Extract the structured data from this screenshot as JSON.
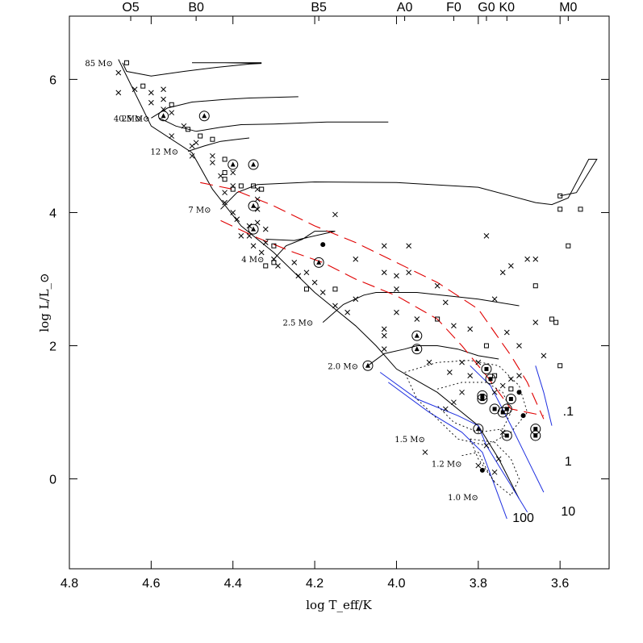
{
  "chart_data": {
    "type": "scatter",
    "title": "",
    "xlabel": "log T_eff/K",
    "ylabel": "log L/L_⊙",
    "x_reversed": true,
    "xlim": [
      4.8,
      3.48
    ],
    "ylim": [
      -1.35,
      6.95
    ],
    "x_ticks": [
      {
        "value": 4.8,
        "label": "4.8"
      },
      {
        "value": 4.6,
        "label": "4.6"
      },
      {
        "value": 4.4,
        "label": "4.4"
      },
      {
        "value": 4.2,
        "label": "4.2"
      },
      {
        "value": 4.0,
        "label": "4.0"
      },
      {
        "value": 3.8,
        "label": "3.8"
      },
      {
        "value": 3.6,
        "label": "3.6"
      }
    ],
    "y_ticks": [
      {
        "value": 0,
        "label": "0"
      },
      {
        "value": 2,
        "label": "2"
      },
      {
        "value": 4,
        "label": "4"
      },
      {
        "value": 6,
        "label": "6"
      }
    ],
    "spectral_types": [
      {
        "label": "O5",
        "logT": 4.65
      },
      {
        "label": "B0",
        "logT": 4.49
      },
      {
        "label": "B5",
        "logT": 4.19
      },
      {
        "label": "A0",
        "logT": 3.98
      },
      {
        "label": "F0",
        "logT": 3.86
      },
      {
        "label": "G0",
        "logT": 3.78
      },
      {
        "label": "K0",
        "logT": 3.73
      },
      {
        "label": "M0",
        "logT": 3.58
      }
    ],
    "mass_tracks": [
      {
        "label": "85 M⊙",
        "points": [
          [
            4.67,
            6.25
          ],
          [
            4.66,
            6.12
          ],
          [
            4.6,
            6.05
          ],
          [
            4.52,
            6.12
          ],
          [
            4.44,
            6.18
          ],
          [
            4.36,
            6.23
          ],
          [
            4.33,
            6.24
          ],
          [
            4.42,
            6.25
          ],
          [
            4.5,
            6.25
          ],
          [
            4.33,
            6.25
          ]
        ]
      },
      {
        "label": "40 M⊙",
        "points": [
          [
            4.6,
            5.42
          ],
          [
            4.56,
            5.57
          ],
          [
            4.5,
            5.66
          ],
          [
            4.42,
            5.7
          ],
          [
            4.36,
            5.72
          ],
          [
            4.24,
            5.74
          ]
        ]
      },
      {
        "label": "25 M⊙",
        "points": [
          [
            4.58,
            5.42
          ],
          [
            4.54,
            5.3
          ],
          [
            4.49,
            5.22
          ],
          [
            4.43,
            5.28
          ],
          [
            4.38,
            5.32
          ],
          [
            4.3,
            5.33
          ],
          [
            4.17,
            5.36
          ],
          [
            4.02,
            5.36
          ]
        ]
      },
      {
        "label": "12 M⊙",
        "points": [
          [
            4.51,
            4.92
          ],
          [
            4.47,
            5.0
          ],
          [
            4.43,
            5.07
          ],
          [
            4.39,
            5.1
          ],
          [
            4.36,
            5.12
          ]
        ]
      },
      {
        "label": "7 M⊙",
        "points": [
          [
            4.43,
            4.05
          ],
          [
            4.39,
            4.3
          ],
          [
            4.34,
            4.42
          ],
          [
            4.2,
            4.46
          ],
          [
            4.0,
            4.45
          ],
          [
            3.8,
            4.38
          ],
          [
            3.66,
            4.15
          ],
          [
            3.62,
            4.12
          ],
          [
            3.58,
            4.22
          ],
          [
            3.53,
            4.8
          ],
          [
            3.51,
            4.8
          ],
          [
            3.56,
            4.3
          ],
          [
            3.6,
            4.25
          ]
        ]
      },
      {
        "label": "4 M⊙",
        "points": [
          [
            4.3,
            3.3
          ],
          [
            4.27,
            3.5
          ],
          [
            4.23,
            3.6
          ],
          [
            4.2,
            3.72
          ],
          [
            4.15,
            3.72
          ],
          [
            4.25,
            3.58
          ],
          [
            4.32,
            3.6
          ]
        ]
      },
      {
        "label": "2.5 M⊙",
        "points": [
          [
            4.18,
            2.35
          ],
          [
            4.13,
            2.62
          ],
          [
            4.08,
            2.76
          ],
          [
            4.05,
            2.8
          ],
          [
            3.95,
            2.8
          ],
          [
            3.8,
            2.7
          ],
          [
            3.7,
            2.6
          ]
        ]
      },
      {
        "label": "2.0 M⊙",
        "points": [
          [
            4.07,
            1.7
          ],
          [
            4.03,
            1.88
          ],
          [
            3.98,
            1.95
          ],
          [
            3.95,
            2.0
          ],
          [
            3.9,
            2.0
          ],
          [
            3.85,
            1.95
          ],
          [
            3.8,
            1.85
          ],
          [
            3.75,
            1.8
          ]
        ]
      }
    ],
    "series": [
      {
        "name": "cross",
        "points": [
          [
            4.68,
            6.1
          ],
          [
            4.68,
            5.8
          ],
          [
            4.64,
            5.85
          ],
          [
            4.6,
            5.65
          ],
          [
            4.6,
            5.8
          ],
          [
            4.57,
            5.7
          ],
          [
            4.57,
            5.85
          ],
          [
            4.57,
            5.55
          ],
          [
            4.55,
            5.5
          ],
          [
            4.55,
            5.15
          ],
          [
            4.52,
            5.3
          ],
          [
            4.49,
            5.05
          ],
          [
            4.5,
            5.0
          ],
          [
            4.5,
            4.85
          ],
          [
            4.45,
            4.75
          ],
          [
            4.45,
            4.85
          ],
          [
            4.43,
            4.55
          ],
          [
            4.42,
            4.3
          ],
          [
            4.42,
            4.15
          ],
          [
            4.4,
            4.6
          ],
          [
            4.4,
            4.4
          ],
          [
            4.4,
            4.0
          ],
          [
            4.39,
            3.9
          ],
          [
            4.38,
            3.65
          ],
          [
            4.36,
            3.65
          ],
          [
            4.34,
            4.35
          ],
          [
            4.34,
            4.2
          ],
          [
            4.34,
            4.05
          ],
          [
            4.34,
            3.85
          ],
          [
            4.32,
            3.75
          ],
          [
            4.32,
            3.55
          ],
          [
            4.33,
            3.4
          ],
          [
            4.35,
            3.5
          ],
          [
            4.36,
            3.8
          ],
          [
            4.3,
            3.3
          ],
          [
            4.29,
            3.2
          ],
          [
            4.25,
            3.25
          ],
          [
            4.24,
            3.05
          ],
          [
            4.22,
            3.1
          ],
          [
            4.2,
            2.95
          ],
          [
            4.18,
            2.8
          ],
          [
            4.15,
            2.6
          ],
          [
            4.12,
            2.5
          ],
          [
            4.1,
            2.7
          ],
          [
            4.1,
            3.3
          ],
          [
            4.15,
            3.97
          ],
          [
            4.03,
            3.5
          ],
          [
            4.03,
            3.1
          ],
          [
            4.0,
            3.05
          ],
          [
            4.0,
            2.85
          ],
          [
            4.0,
            2.5
          ],
          [
            4.03,
            2.25
          ],
          [
            4.03,
            2.15
          ],
          [
            4.03,
            1.95
          ],
          [
            3.97,
            3.5
          ],
          [
            3.97,
            3.1
          ],
          [
            3.95,
            2.4
          ],
          [
            3.92,
            1.75
          ],
          [
            3.9,
            2.9
          ],
          [
            3.88,
            2.65
          ],
          [
            3.87,
            1.6
          ],
          [
            3.86,
            2.3
          ],
          [
            3.84,
            1.75
          ],
          [
            3.82,
            2.25
          ],
          [
            3.82,
            1.55
          ],
          [
            3.8,
            1.75
          ],
          [
            3.78,
            3.65
          ],
          [
            3.76,
            2.7
          ],
          [
            3.74,
            3.1
          ],
          [
            3.72,
            3.2
          ],
          [
            3.73,
            2.2
          ],
          [
            3.7,
            2.0
          ],
          [
            3.7,
            1.55
          ],
          [
            3.68,
            3.3
          ],
          [
            3.66,
            3.3
          ],
          [
            3.66,
            2.35
          ],
          [
            3.64,
            1.85
          ],
          [
            3.93,
            0.4
          ],
          [
            3.88,
            1.05
          ],
          [
            3.86,
            1.15
          ],
          [
            3.84,
            1.3
          ],
          [
            3.76,
            1.3
          ],
          [
            3.74,
            1.4
          ],
          [
            3.72,
            1.5
          ],
          [
            3.74,
            0.7
          ],
          [
            3.78,
            0.5
          ],
          [
            3.75,
            0.3
          ],
          [
            3.8,
            0.2
          ],
          [
            3.76,
            0.1
          ]
        ]
      },
      {
        "name": "open square",
        "points": [
          [
            4.66,
            6.25
          ],
          [
            4.62,
            5.9
          ],
          [
            4.55,
            5.62
          ],
          [
            4.51,
            5.25
          ],
          [
            4.48,
            5.15
          ],
          [
            4.45,
            5.1
          ],
          [
            4.42,
            4.8
          ],
          [
            4.42,
            4.6
          ],
          [
            4.42,
            4.5
          ],
          [
            4.4,
            4.35
          ],
          [
            4.38,
            4.4
          ],
          [
            4.35,
            4.4
          ],
          [
            4.33,
            4.35
          ],
          [
            4.3,
            3.5
          ],
          [
            4.3,
            3.25
          ],
          [
            4.32,
            3.2
          ],
          [
            4.22,
            2.85
          ],
          [
            4.15,
            2.85
          ],
          [
            3.9,
            2.4
          ],
          [
            3.78,
            2.0
          ],
          [
            3.76,
            1.55
          ],
          [
            3.72,
            1.35
          ],
          [
            3.66,
            2.9
          ],
          [
            3.62,
            2.4
          ],
          [
            3.61,
            2.35
          ],
          [
            3.58,
            3.5
          ],
          [
            3.6,
            1.7
          ],
          [
            3.6,
            4.25
          ],
          [
            3.6,
            4.05
          ],
          [
            3.55,
            4.05
          ]
        ]
      },
      {
        "name": "circled triangle",
        "points": [
          [
            4.57,
            5.45
          ],
          [
            4.47,
            5.45
          ],
          [
            4.4,
            4.72
          ],
          [
            4.35,
            4.72
          ],
          [
            4.35,
            4.1
          ],
          [
            4.35,
            3.75
          ],
          [
            4.19,
            3.25
          ],
          [
            3.95,
            2.15
          ],
          [
            3.95,
            1.95
          ],
          [
            4.07,
            1.7
          ],
          [
            3.8,
            0.75
          ]
        ]
      },
      {
        "name": "circled square",
        "points": [
          [
            3.78,
            1.65
          ],
          [
            3.77,
            1.5
          ],
          [
            3.79,
            1.2
          ],
          [
            3.76,
            1.05
          ],
          [
            3.74,
            1.0
          ],
          [
            3.73,
            1.05
          ],
          [
            3.72,
            1.2
          ],
          [
            3.73,
            0.65
          ],
          [
            3.66,
            0.75
          ],
          [
            3.66,
            0.65
          ],
          [
            3.79,
            1.25
          ]
        ]
      },
      {
        "name": "filled",
        "points": [
          [
            4.18,
            3.52
          ],
          [
            3.79,
            0.13
          ],
          [
            3.7,
            1.3
          ],
          [
            3.69,
            0.95
          ]
        ]
      }
    ],
    "red_dashed_curves": [
      [
        [
          4.48,
          4.45
        ],
        [
          4.4,
          4.35
        ],
        [
          4.3,
          4.1
        ],
        [
          4.2,
          3.8
        ],
        [
          4.1,
          3.55
        ],
        [
          4.0,
          3.25
        ],
        [
          3.9,
          2.95
        ],
        [
          3.8,
          2.55
        ],
        [
          3.76,
          2.2
        ],
        [
          3.72,
          1.85
        ],
        [
          3.68,
          1.45
        ],
        [
          3.64,
          0.9
        ]
      ],
      [
        [
          4.43,
          3.88
        ],
        [
          4.34,
          3.62
        ],
        [
          4.25,
          3.4
        ],
        [
          4.18,
          3.25
        ],
        [
          4.1,
          3.0
        ],
        [
          4.0,
          2.75
        ],
        [
          3.9,
          2.4
        ],
        [
          3.84,
          2.0
        ],
        [
          3.78,
          1.55
        ],
        [
          3.72,
          1.05
        ],
        [
          3.64,
          0.95
        ]
      ]
    ],
    "isochrone_labels": [
      {
        "label": ".1",
        "logT": 3.58,
        "logL": 0.95
      },
      {
        "label": "1",
        "logT": 3.58,
        "logL": 0.2
      },
      {
        "label": "10",
        "logT": 3.58,
        "logL": -0.55
      },
      {
        "label": "100",
        "logT": 3.69,
        "logL": -0.65
      }
    ],
    "extra_labels": [
      {
        "label": "1.5 M⊙",
        "logT": 3.93,
        "logL": 0.55
      },
      {
        "label": "1.2 M⊙",
        "logT": 3.84,
        "logL": 0.18
      },
      {
        "label": "1.0 M⊙",
        "logT": 3.8,
        "logL": -0.32
      }
    ],
    "zams": [
      [
        4.68,
        6.3
      ],
      [
        4.6,
        5.3
      ],
      [
        4.5,
        4.9
      ],
      [
        4.45,
        4.35
      ],
      [
        4.38,
        3.8
      ],
      [
        4.3,
        3.4
      ],
      [
        4.2,
        2.8
      ],
      [
        4.1,
        2.3
      ],
      [
        4.05,
        2.0
      ],
      [
        4.0,
        1.65
      ],
      [
        3.9,
        1.3
      ],
      [
        3.8,
        0.8
      ],
      [
        3.75,
        0.3
      ],
      [
        3.7,
        -0.3
      ]
    ]
  }
}
